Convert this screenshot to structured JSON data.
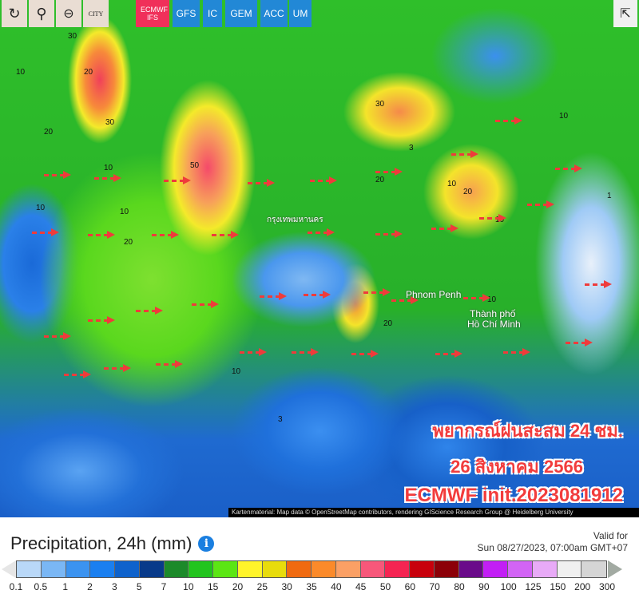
{
  "toolbar": {
    "tools": [
      {
        "name": "refresh",
        "icon": "↻"
      },
      {
        "name": "location",
        "icon": "⚲"
      },
      {
        "name": "zoom-out",
        "icon": "⊖"
      },
      {
        "name": "city",
        "label": "CITY"
      }
    ],
    "models": [
      "ECMWF IFS",
      "GFS",
      "IC",
      "GEM",
      "ACC",
      "UM"
    ],
    "active_model": "ECMWF IFS",
    "active_color": "#f0305a",
    "share_icon": "share-icon"
  },
  "map": {
    "places": [
      "กรุงเทพมหานคร",
      "Phnom Penh",
      "Thành phố",
      "Hồ Chí Minh"
    ],
    "contours": [
      "30",
      "20",
      "10",
      "30",
      "50",
      "20",
      "10",
      "20",
      "10",
      "30",
      "20",
      "10",
      "20",
      "10",
      "10",
      "20",
      "3",
      "10",
      "10",
      "10",
      "3",
      "1"
    ],
    "overlay": [
      "พยากรณ์ฝนสะสม 24 ชม.",
      "26 สิงหาคม 2566",
      "ECMWF init.2023081912"
    ],
    "attribution": "Kartenmaterial: Map data © OpenStreetMap contributors, rendering GIScience Research Group @ Heidelberg University"
  },
  "legend": {
    "title": "Precipitation, 24h (mm)",
    "valid_label": "Valid for",
    "valid_time": "Sun 08/27/2023, 07:00am GMT+07",
    "colors": [
      "#b9d8f8",
      "#7ab7f5",
      "#3b93f0",
      "#1a7ff0",
      "#0e62cc",
      "#083a8a",
      "#1c8a2a",
      "#22c41e",
      "#5be614",
      "#fff42a",
      "#e8dc0c",
      "#f06a10",
      "#fb8a2a",
      "#fba065",
      "#f7577a",
      "#f52452",
      "#c8000c",
      "#8c0008",
      "#6a0a8a",
      "#c21ef5",
      "#d264f5",
      "#e8aaf7",
      "#f0f0f0",
      "#d5d5d5"
    ],
    "ticks": [
      "0.1",
      "0.5",
      "1",
      "2",
      "3",
      "5",
      "7",
      "10",
      "15",
      "20",
      "25",
      "30",
      "35",
      "40",
      "45",
      "50",
      "60",
      "70",
      "80",
      "90",
      "100",
      "125",
      "150",
      "200",
      "300"
    ]
  }
}
